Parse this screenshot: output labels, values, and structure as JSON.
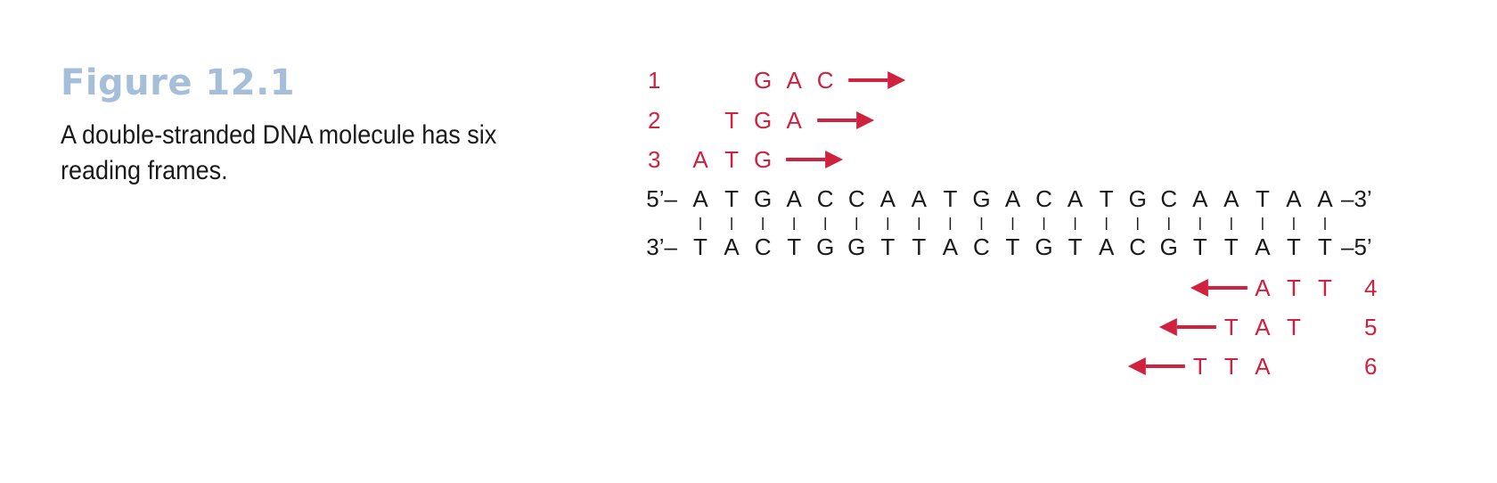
{
  "figure": {
    "title": "Figure 12.1",
    "caption": "A double-stranded DNA molecule has six reading frames."
  },
  "colors": {
    "strand": "#1a1a1a",
    "frame": "#d0213f",
    "title": "#a6bfd9"
  },
  "dna": {
    "top_strand": {
      "left_end": "5’–",
      "right_end": "–3’",
      "bases": [
        "A",
        "T",
        "G",
        "A",
        "C",
        "C",
        "A",
        "A",
        "T",
        "G",
        "A",
        "C",
        "A",
        "T",
        "G",
        "C",
        "A",
        "A",
        "T",
        "A",
        "A"
      ]
    },
    "bottom_strand": {
      "left_end": "3’–",
      "right_end": "–5’",
      "bases": [
        "T",
        "A",
        "C",
        "T",
        "G",
        "G",
        "T",
        "T",
        "A",
        "C",
        "T",
        "G",
        "T",
        "A",
        "C",
        "G",
        "T",
        "T",
        "A",
        "T",
        "T"
      ]
    }
  },
  "reading_frames": [
    {
      "number": "1",
      "codon": [
        "G",
        "A",
        "C"
      ],
      "start": 2,
      "direction": "forward"
    },
    {
      "number": "2",
      "codon": [
        "T",
        "G",
        "A"
      ],
      "start": 1,
      "direction": "forward"
    },
    {
      "number": "3",
      "codon": [
        "A",
        "T",
        "G"
      ],
      "start": 0,
      "direction": "forward"
    },
    {
      "number": "4",
      "codon": [
        "A",
        "T",
        "T"
      ],
      "start": 18,
      "direction": "reverse"
    },
    {
      "number": "5",
      "codon": [
        "T",
        "A",
        "T"
      ],
      "start": 17,
      "direction": "reverse"
    },
    {
      "number": "6",
      "codon": [
        "T",
        "T",
        "A"
      ],
      "start": 16,
      "direction": "reverse"
    }
  ]
}
